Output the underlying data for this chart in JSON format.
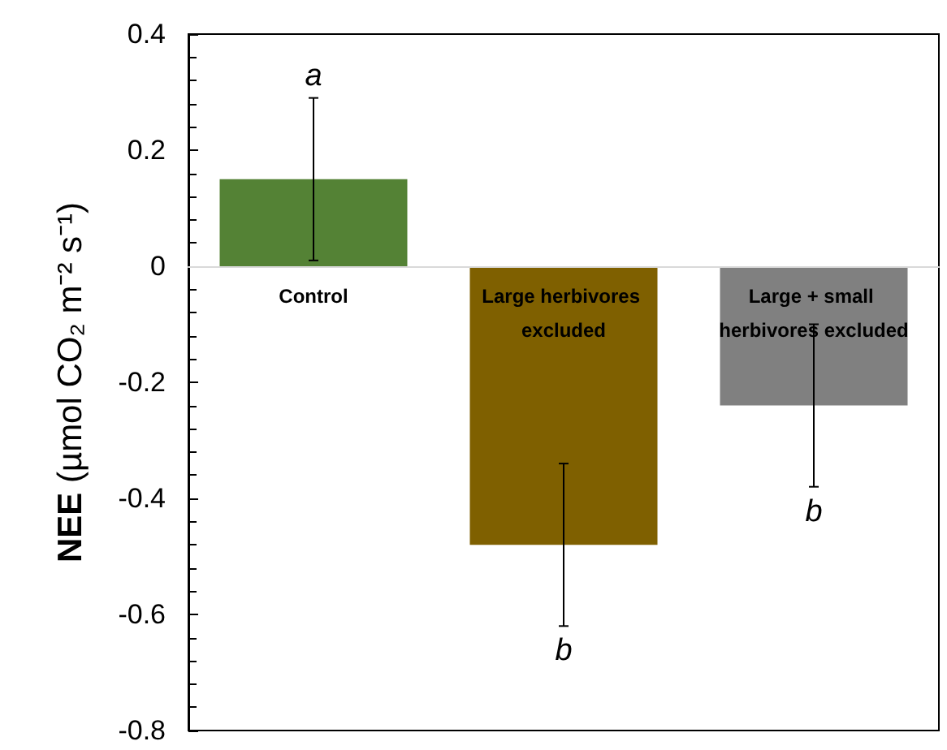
{
  "chart_data": {
    "type": "bar",
    "ylabel": "NEE (µmol CO₂ m⁻² s⁻¹)",
    "categories": [
      "Control",
      "Large herbivores excluded",
      "Large + small herbivores excluded"
    ],
    "values": [
      0.15,
      -0.48,
      -0.24
    ],
    "colors": [
      "#548235",
      "#7f6000",
      "#808080"
    ],
    "errors": [
      0.14,
      0.14,
      0.14
    ],
    "ylim": [
      -0.8,
      0.4
    ],
    "yticks": [
      -0.8,
      -0.6,
      -0.4,
      -0.2,
      0,
      0.2,
      0.4
    ],
    "annotations": [
      {
        "text": "a",
        "x": "Control",
        "y": 0.29
      },
      {
        "text": "b",
        "x": "Large herbivores excluded",
        "y": -0.62
      },
      {
        "text": "b",
        "x": "Large + small herbivores excluded",
        "y": -0.38
      }
    ]
  }
}
